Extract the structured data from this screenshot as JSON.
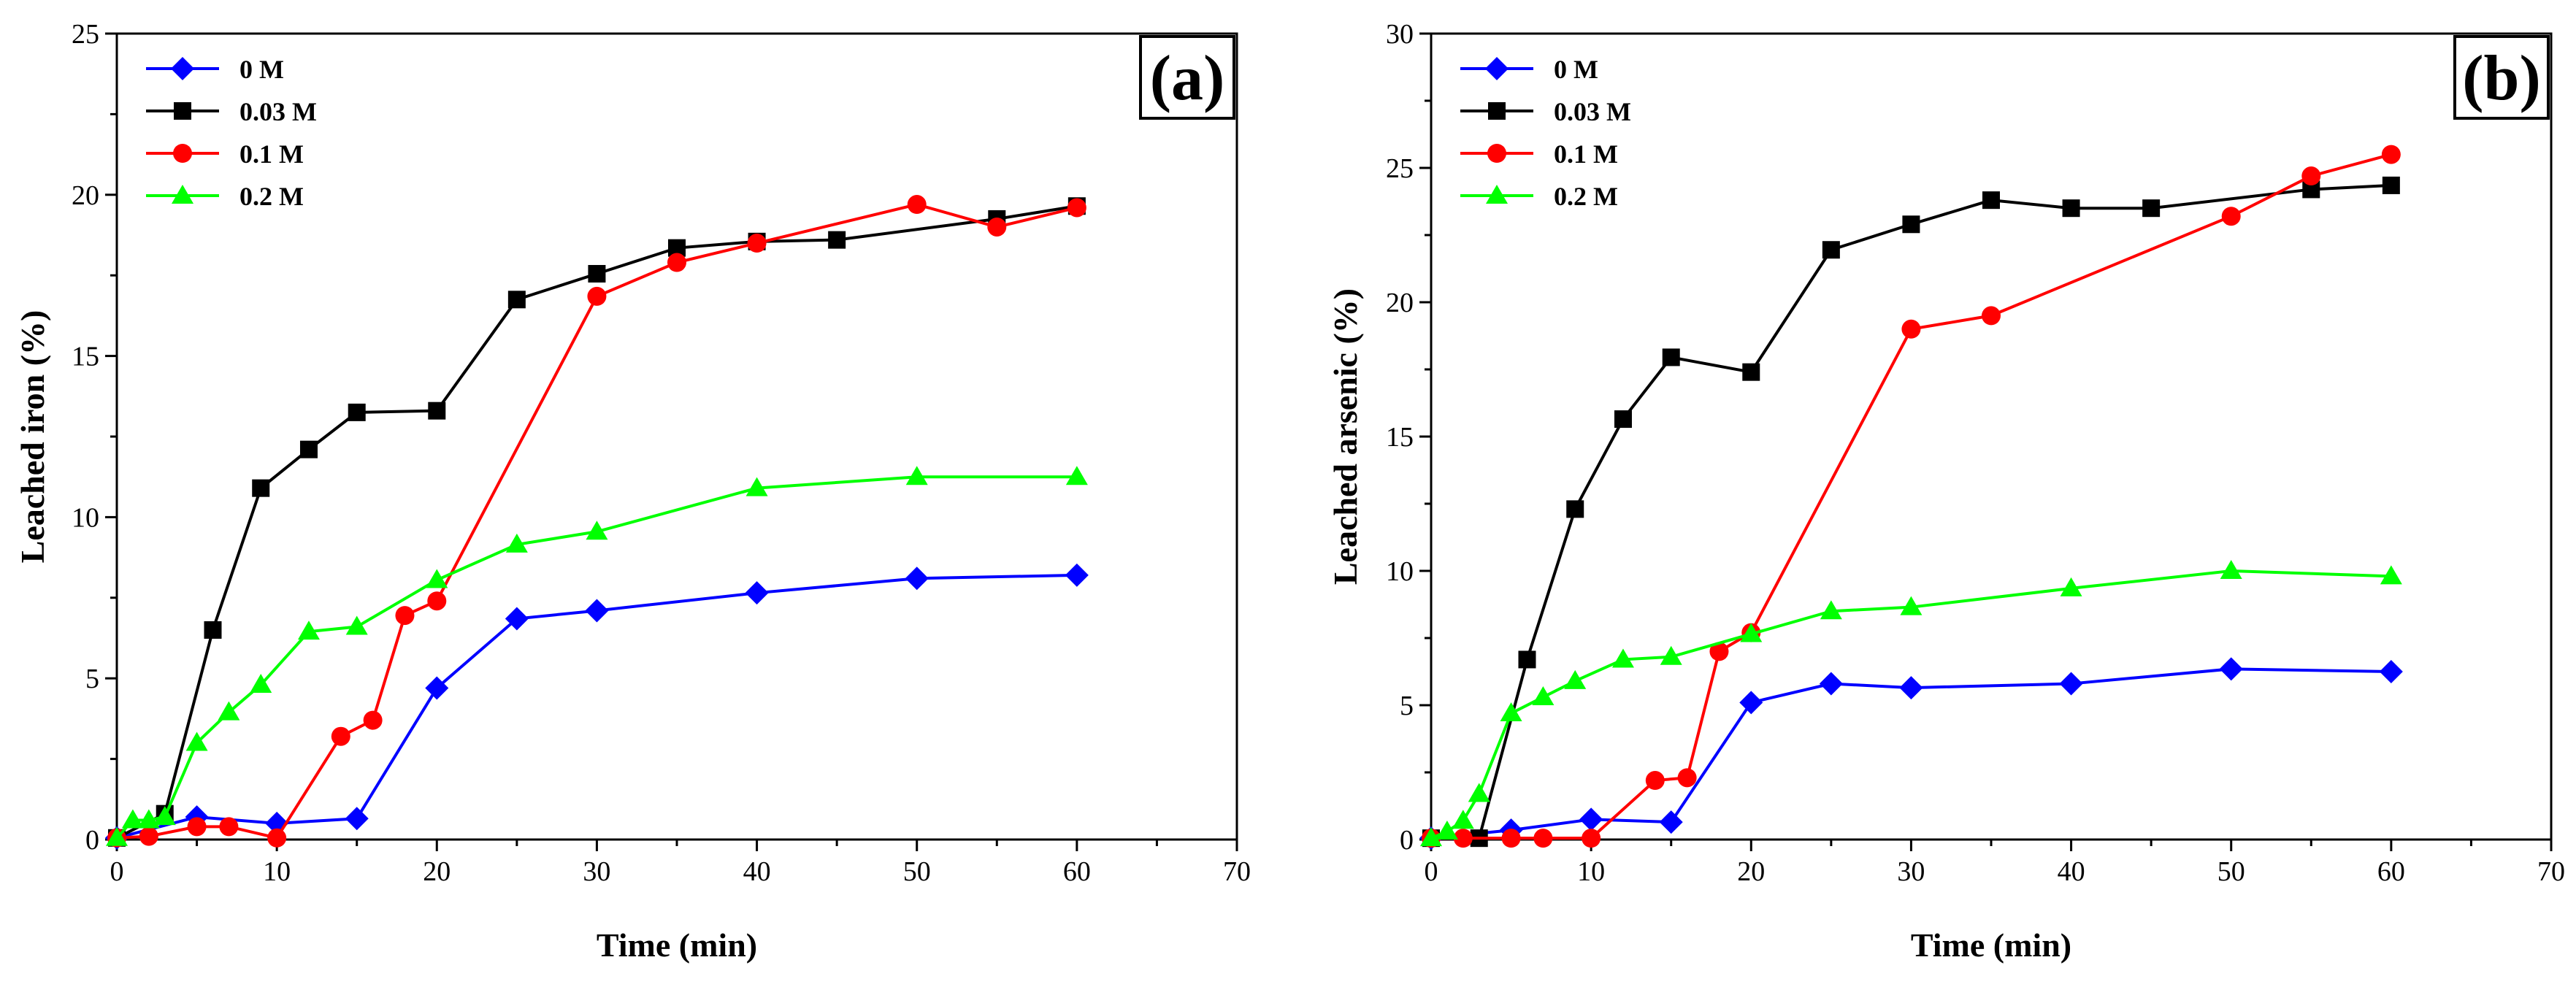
{
  "chart_data": [
    {
      "type": "line",
      "panel_label": "(a)",
      "xlabel": "Time (min)",
      "ylabel": "Leached iron (%)",
      "xlim": [
        0,
        70
      ],
      "ylim": [
        0,
        25
      ],
      "xticks": [
        0,
        10,
        20,
        30,
        40,
        50,
        60,
        70
      ],
      "yticks": [
        0,
        5,
        10,
        15,
        20,
        25
      ],
      "legend_position": "top-left",
      "series": [
        {
          "name": "0 M",
          "color": "#0000ff",
          "marker": "diamond",
          "x": [
            0,
            5,
            10,
            15,
            20,
            25,
            30,
            40,
            50,
            60
          ],
          "y": [
            0.05,
            0.7,
            0.5,
            0.65,
            4.7,
            6.85,
            7.1,
            7.65,
            8.1,
            8.2
          ]
        },
        {
          "name": "0.03 M",
          "color": "#000000",
          "marker": "square",
          "x": [
            0,
            3,
            6,
            9,
            12,
            15,
            20,
            25,
            30,
            35,
            40,
            45,
            55,
            60
          ],
          "y": [
            0.05,
            0.8,
            6.5,
            10.9,
            12.1,
            13.25,
            13.3,
            16.75,
            17.55,
            18.35,
            18.55,
            18.6,
            19.25,
            19.65
          ]
        },
        {
          "name": "0.1 M",
          "color": "#ff0000",
          "marker": "circle",
          "x": [
            0,
            2,
            5,
            7,
            10,
            14,
            16,
            18,
            20,
            30,
            35,
            40,
            50,
            55,
            60
          ],
          "y": [
            0.05,
            0.1,
            0.4,
            0.4,
            0.05,
            3.2,
            3.7,
            6.95,
            7.4,
            16.85,
            17.9,
            18.5,
            19.7,
            19.0,
            19.6
          ]
        },
        {
          "name": "0.2 M",
          "color": "#00ff00",
          "marker": "triangle",
          "x": [
            0,
            1,
            2,
            3,
            5,
            7,
            9,
            12,
            15,
            20,
            25,
            30,
            40,
            50,
            60
          ],
          "y": [
            0.05,
            0.6,
            0.6,
            0.7,
            3.0,
            3.95,
            4.8,
            6.45,
            6.6,
            8.05,
            9.15,
            9.55,
            10.9,
            11.25,
            11.25
          ]
        }
      ]
    },
    {
      "type": "line",
      "panel_label": "(b)",
      "xlabel": "Time (min)",
      "ylabel": "Leached arsenic (%)",
      "xlim": [
        0,
        70
      ],
      "ylim": [
        0,
        30
      ],
      "xticks": [
        0,
        10,
        20,
        30,
        40,
        50,
        60,
        70
      ],
      "yticks": [
        0,
        5,
        10,
        15,
        20,
        25,
        30
      ],
      "legend_position": "top-left",
      "series": [
        {
          "name": "0 M",
          "color": "#0000ff",
          "marker": "diamond",
          "x": [
            0,
            5,
            10,
            15,
            20,
            25,
            30,
            40,
            50,
            60
          ],
          "y": [
            0.05,
            0.35,
            0.75,
            0.65,
            5.1,
            5.8,
            5.65,
            5.8,
            6.35,
            6.25
          ]
        },
        {
          "name": "0.03 M",
          "color": "#000000",
          "marker": "square",
          "x": [
            0,
            3,
            6,
            9,
            12,
            15,
            20,
            25,
            30,
            35,
            40,
            45,
            55,
            60
          ],
          "y": [
            0.05,
            0.05,
            6.7,
            12.3,
            15.65,
            17.95,
            17.4,
            21.95,
            22.9,
            23.8,
            23.5,
            23.5,
            24.2,
            24.35
          ]
        },
        {
          "name": "0.1 M",
          "color": "#ff0000",
          "marker": "circle",
          "x": [
            0,
            2,
            5,
            7,
            10,
            14,
            16,
            18,
            20,
            30,
            35,
            50,
            55,
            60
          ],
          "y": [
            0.05,
            0.05,
            0.05,
            0.05,
            0.05,
            2.2,
            2.3,
            7.0,
            7.7,
            19.0,
            19.5,
            23.2,
            24.7,
            25.5
          ]
        },
        {
          "name": "0.2 M",
          "color": "#00ff00",
          "marker": "triangle",
          "x": [
            0,
            1,
            2,
            3,
            5,
            7,
            9,
            12,
            15,
            20,
            25,
            30,
            40,
            50,
            60
          ],
          "y": [
            0.05,
            0.3,
            0.7,
            1.7,
            4.7,
            5.3,
            5.9,
            6.7,
            6.8,
            7.65,
            8.5,
            8.65,
            9.35,
            10.0,
            9.8
          ]
        }
      ]
    }
  ]
}
